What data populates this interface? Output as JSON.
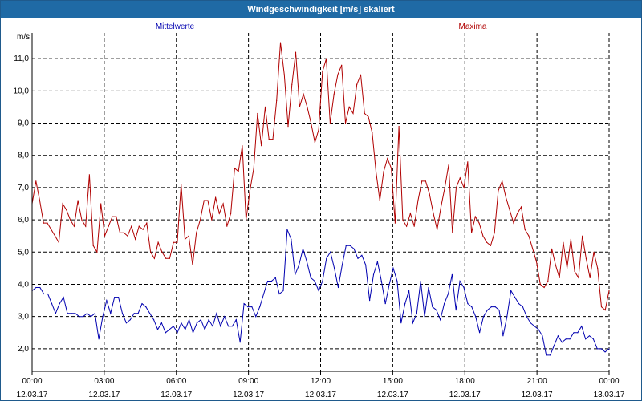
{
  "window": {
    "title": "Windgeschwindigkeit [m/s] skaliert"
  },
  "chart_data": {
    "type": "line",
    "title": "Windgeschwindigkeit [m/s] skaliert",
    "ylabel": "m/s",
    "xlabel": "",
    "ylim": [
      1.3,
      11.8
    ],
    "xlim_minutes": [
      0,
      1440
    ],
    "grid": true,
    "legend_placement": "top",
    "y_ticks": [
      "2,0",
      "3,0",
      "4,0",
      "5,0",
      "6,0",
      "7,0",
      "8,0",
      "9,0",
      "10,0",
      "11,0"
    ],
    "x_ticks": [
      {
        "time": "00:00",
        "date": "12.03.17"
      },
      {
        "time": "03:00",
        "date": "12.03.17"
      },
      {
        "time": "06:00",
        "date": "12.03.17"
      },
      {
        "time": "09:00",
        "date": "12.03.17"
      },
      {
        "time": "12:00",
        "date": "12.03.17"
      },
      {
        "time": "15:00",
        "date": "12.03.17"
      },
      {
        "time": "18:00",
        "date": "12.03.17"
      },
      {
        "time": "21:00",
        "date": "12.03.17"
      },
      {
        "time": "00:00",
        "date": "13.03.17"
      }
    ],
    "series": [
      {
        "name": "Mittelwerte",
        "color": "#0000b0",
        "values": [
          3.8,
          3.9,
          3.9,
          3.7,
          3.7,
          3.4,
          3.1,
          3.4,
          3.6,
          3.1,
          3.1,
          3.1,
          3.0,
          3.0,
          3.1,
          3.0,
          3.1,
          2.3,
          3.0,
          3.5,
          3.1,
          3.6,
          3.6,
          3.1,
          2.8,
          2.9,
          3.1,
          3.1,
          3.4,
          3.3,
          3.1,
          2.9,
          2.6,
          2.8,
          2.5,
          2.6,
          2.7,
          2.5,
          2.8,
          2.6,
          2.9,
          2.5,
          2.8,
          2.9,
          2.6,
          2.9,
          2.7,
          3.1,
          2.7,
          3.0,
          2.7,
          2.7,
          2.9,
          2.2,
          3.4,
          3.3,
          3.3,
          3.0,
          3.3,
          3.7,
          4.1,
          4.1,
          4.2,
          3.7,
          3.8,
          5.7,
          5.4,
          4.3,
          4.6,
          5.1,
          4.7,
          4.2,
          4.1,
          3.8,
          4.1,
          4.8,
          5.0,
          4.5,
          3.9,
          4.6,
          5.2,
          5.2,
          5.1,
          4.8,
          4.9,
          4.6,
          3.5,
          4.3,
          4.7,
          4.1,
          3.4,
          4.0,
          4.5,
          4.1,
          2.8,
          3.4,
          3.8,
          2.8,
          3.1,
          4.1,
          3.0,
          3.9,
          3.3,
          3.2,
          2.9,
          3.4,
          3.7,
          4.3,
          3.2,
          4.1,
          3.9,
          3.4,
          3.3,
          3.0,
          2.5,
          3.0,
          3.2,
          3.3,
          3.3,
          3.2,
          2.4,
          3.0,
          3.8,
          3.6,
          3.4,
          3.3,
          3.0,
          2.8,
          2.7,
          2.6,
          2.4,
          1.8,
          1.8,
          2.1,
          2.4,
          2.2,
          2.3,
          2.3,
          2.5,
          2.5,
          2.7,
          2.3,
          2.4,
          2.3,
          2.0,
          2.0,
          1.9,
          2.0
        ]
      },
      {
        "name": "Maxima",
        "color": "#b00000",
        "values": [
          6.5,
          7.2,
          6.6,
          5.9,
          5.9,
          5.7,
          5.5,
          5.3,
          6.5,
          6.3,
          6.0,
          5.8,
          6.6,
          6.0,
          5.8,
          7.4,
          5.2,
          5.0,
          6.5,
          5.5,
          5.8,
          6.1,
          6.1,
          5.6,
          5.6,
          5.5,
          5.8,
          5.4,
          5.8,
          5.7,
          5.9,
          5.0,
          4.8,
          5.3,
          5.0,
          4.8,
          4.8,
          5.3,
          5.3,
          7.1,
          5.4,
          5.5,
          4.6,
          5.6,
          6.0,
          6.6,
          6.6,
          6.0,
          6.7,
          6.2,
          6.5,
          5.8,
          6.2,
          7.6,
          7.5,
          8.3,
          6.0,
          6.9,
          7.6,
          9.3,
          8.3,
          9.5,
          8.5,
          8.5,
          9.7,
          11.5,
          10.5,
          8.9,
          10.2,
          11.2,
          9.5,
          9.9,
          9.5,
          9.0,
          8.4,
          8.8,
          10.6,
          11.0,
          9.0,
          9.9,
          10.5,
          10.8,
          9.0,
          9.5,
          9.3,
          10.2,
          10.5,
          9.3,
          9.2,
          8.7,
          7.5,
          6.6,
          7.5,
          7.9,
          7.6,
          5.9,
          8.9,
          6.0,
          5.8,
          6.2,
          5.8,
          6.6,
          7.2,
          7.2,
          6.8,
          6.2,
          5.7,
          6.4,
          7.0,
          7.7,
          5.6,
          7.0,
          7.3,
          7.0,
          7.8,
          5.6,
          6.1,
          5.9,
          5.5,
          5.3,
          5.2,
          5.6,
          6.9,
          7.2,
          6.7,
          6.3,
          5.9,
          6.2,
          6.4,
          5.7,
          5.5,
          5.1,
          4.7,
          4.0,
          3.9,
          4.1,
          5.1,
          4.6,
          4.2,
          5.3,
          4.5,
          5.4,
          4.4,
          4.2,
          5.5,
          4.8,
          4.2,
          5.0,
          4.5,
          3.3,
          3.2,
          3.8
        ]
      }
    ]
  }
}
